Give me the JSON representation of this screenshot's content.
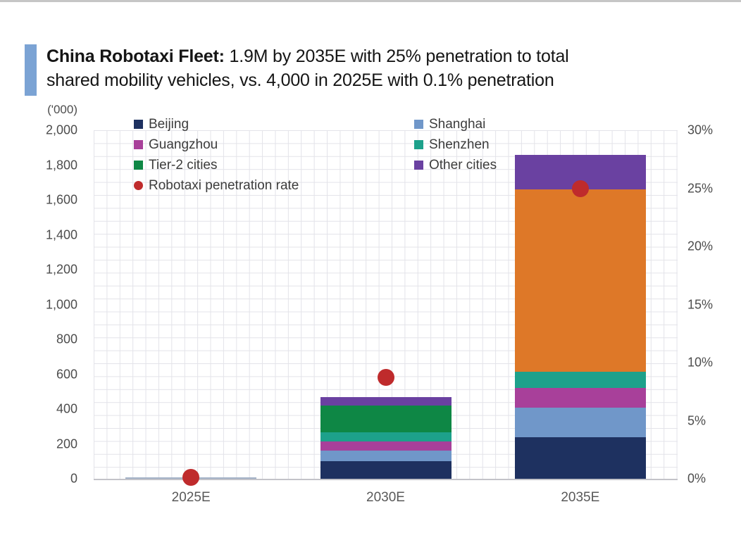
{
  "header": {
    "accent_color": "#7ba3d4",
    "title_bold": "China Robotaxi Fleet:",
    "title_line1_rest": " 1.9M by 2035E with 25% penetration to total",
    "title_line2": "shared mobility vehicles, vs. 4,000 in 2025E with 0.1% penetration"
  },
  "chart_data": {
    "type": "bar",
    "stacked": true,
    "title": "China Robotaxi Fleet: 1.9M by 2035E with 25% penetration to total shared mobility vehicles, vs. 4,000 in 2025E with 0.1% penetration",
    "categories": [
      "2025E",
      "2030E",
      "2035E"
    ],
    "series": [
      {
        "name": "Beijing",
        "color": "#1e3160",
        "values": [
          2,
          100,
          240
        ]
      },
      {
        "name": "Shanghai",
        "color": "#7097c9",
        "values": [
          1,
          60,
          170
        ]
      },
      {
        "name": "Guangzhou",
        "color": "#a8409a",
        "values": [
          0.5,
          55,
          110
        ]
      },
      {
        "name": "Shenzhen",
        "color": "#1da18b",
        "values": [
          0.5,
          50,
          95
        ]
      },
      {
        "name": "Tier-2 cities",
        "color": "#0e8745",
        "values": [
          0,
          155,
          1045
        ],
        "color_per_category": [
          null,
          null,
          "#de7828"
        ]
      },
      {
        "name": "Other cities",
        "color": "#6a41a1",
        "values": [
          0,
          50,
          200
        ]
      }
    ],
    "totals_thousands": [
      4,
      470,
      1860
    ],
    "penetration_series": {
      "name": "Robotaxi penetration rate",
      "color": "#bf2b2c",
      "values_pct": [
        0.1,
        8.7,
        25
      ]
    },
    "left_axis": {
      "unit_label": "('000)",
      "min": 0,
      "max": 2000,
      "ticks": [
        {
          "label": "2,000",
          "value": 2000
        },
        {
          "label": "1,800",
          "value": 1800
        },
        {
          "label": "1,600",
          "value": 1600
        },
        {
          "label": "1,400",
          "value": 1400
        },
        {
          "label": "1,200",
          "value": 1200
        },
        {
          "label": "1,000",
          "value": 1000
        },
        {
          "label": "800",
          "value": 800
        },
        {
          "label": "600",
          "value": 600
        },
        {
          "label": "400",
          "value": 400
        },
        {
          "label": "200",
          "value": 200
        },
        {
          "label": "0",
          "value": 0
        }
      ]
    },
    "right_axis": {
      "min": 0,
      "max": 30,
      "ticks": [
        {
          "label": "30%",
          "value": 30
        },
        {
          "label": "25%",
          "value": 25
        },
        {
          "label": "20%",
          "value": 20
        },
        {
          "label": "15%",
          "value": 15
        },
        {
          "label": "10%",
          "value": 10
        },
        {
          "label": "5%",
          "value": 5
        },
        {
          "label": "0%",
          "value": 0
        }
      ]
    },
    "legend": {
      "columns": [
        {
          "items": [
            {
              "label": "Beijing",
              "swatch": "square",
              "color": "#1e3160"
            },
            {
              "label": "Guangzhou",
              "swatch": "square",
              "color": "#a8409a"
            },
            {
              "label": "Tier-2 cities",
              "swatch": "square",
              "color": "#0e8745"
            },
            {
              "label": "Robotaxi penetration rate",
              "swatch": "circle",
              "color": "#bf2b2c"
            }
          ]
        },
        {
          "items": [
            {
              "label": "Shanghai",
              "swatch": "square",
              "color": "#7097c9"
            },
            {
              "label": "Shenzhen",
              "swatch": "square",
              "color": "#1da18b"
            },
            {
              "label": "Other cities",
              "swatch": "square",
              "color": "#6a41a1"
            }
          ]
        }
      ]
    },
    "grid": true,
    "legend_position": "top-inside",
    "thin_bar_color": "#a2b1c6"
  }
}
